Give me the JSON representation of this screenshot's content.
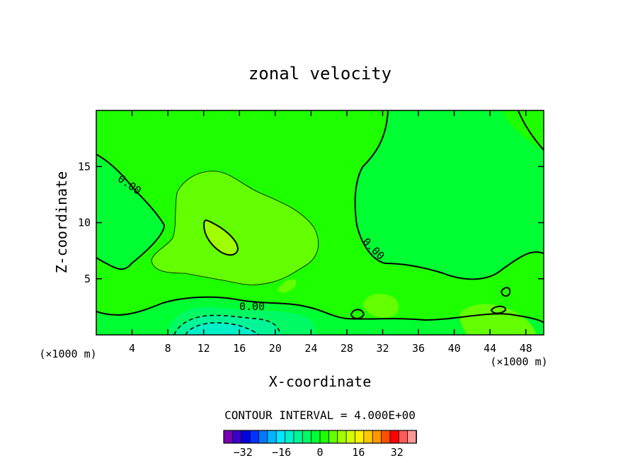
{
  "chart_data": {
    "type": "contour",
    "title": "zonal velocity",
    "xlabel": "X-coordinate",
    "ylabel": "Z-coordinate",
    "x_unit_label": "(×1000 m)",
    "xlim": [
      0,
      50
    ],
    "ylim": [
      0,
      20
    ],
    "x_ticks": [
      4,
      8,
      12,
      16,
      20,
      24,
      28,
      32,
      36,
      40,
      44,
      48
    ],
    "y_ticks": [
      5,
      10,
      15
    ],
    "contour_interval_label": "CONTOUR INTERVAL = 4.000E+00",
    "contour_interval": 4.0,
    "contour_labels": [
      "0.00",
      "0.00",
      "0.00"
    ],
    "colorbar": {
      "min": -40,
      "max": 40,
      "ticks": [
        -32,
        -16,
        0,
        16,
        32
      ],
      "colors": [
        "#7b00b4",
        "#3c00c8",
        "#0000e0",
        "#0032ff",
        "#0078ff",
        "#00b4ff",
        "#00e6ff",
        "#00f0c8",
        "#00f596",
        "#00fa64",
        "#00ff32",
        "#1eff00",
        "#64ff00",
        "#a0ff00",
        "#d2ff00",
        "#fff000",
        "#ffc800",
        "#ff9600",
        "#ff5000",
        "#ff0000",
        "#ff5a5a",
        "#ff9696"
      ]
    },
    "regions": {
      "background": "#1eff00",
      "negative_weak": "#00ff32",
      "negative_mid": "#00fa64",
      "negative_strong": "#00f596",
      "negative_core": "#00f0c8",
      "positive_weak": "#64ff00",
      "positive_mid": "#a0ff00"
    },
    "grid": false,
    "legend": "colorbar-bottom"
  }
}
